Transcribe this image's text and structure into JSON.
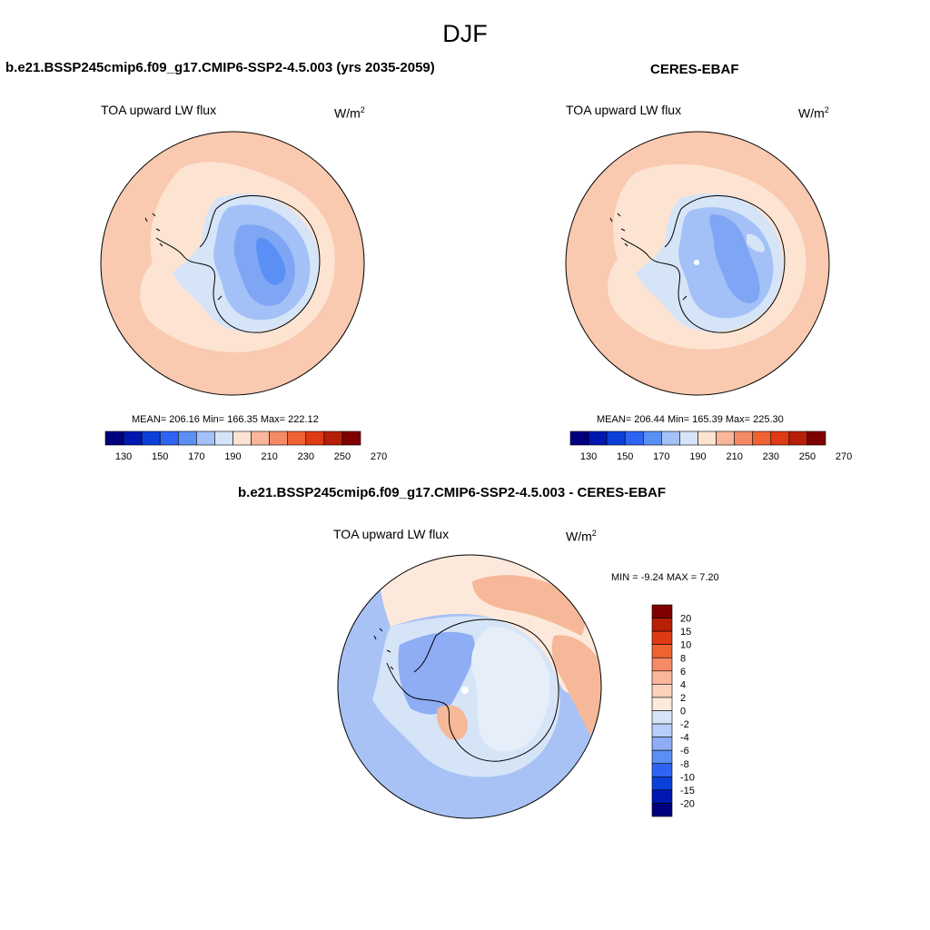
{
  "figure_title": "DJF",
  "panels": [
    {
      "title": "b.e21.BSSP245cmip6.f09_g17.CMIP6-SSP2-4.5.003 (yrs 2035-2059)",
      "variable": "TOA upward LW flux",
      "units_base": "W/m",
      "units_exp": "2",
      "stats": "MEAN= 206.16  Min= 166.35  Max= 222.12"
    },
    {
      "title": "CERES-EBAF",
      "variable": "TOA upward LW flux",
      "units_base": "W/m",
      "units_exp": "2",
      "stats": "MEAN= 206.44  Min= 165.39  Max= 225.30"
    },
    {
      "title": "b.e21.BSSP245cmip6.f09_g17.CMIP6-SSP2-4.5.003 - CERES-EBAF",
      "variable": "TOA upward LW flux",
      "units_base": "W/m",
      "units_exp": "2",
      "stats": "MIN =  -9.24 MAX =   7.20"
    }
  ],
  "colorbar_abs": {
    "tick_labels": [
      "130",
      "150",
      "170",
      "190",
      "210",
      "230",
      "250",
      "270"
    ],
    "colors": [
      "#00007f",
      "#0018b0",
      "#0a3fd8",
      "#2e64f2",
      "#5a8ff6",
      "#a3c0f7",
      "#d6e4f8",
      "#fde4d2",
      "#f9b69b",
      "#f48a66",
      "#ef6232",
      "#de3a14",
      "#b62006",
      "#7f0000"
    ]
  },
  "colorbar_diff": {
    "tick_labels": [
      "20",
      "15",
      "10",
      "8",
      "6",
      "4",
      "2",
      "0",
      "-2",
      "-4",
      "-6",
      "-8",
      "-10",
      "-15",
      "-20"
    ],
    "colors": [
      "#7f0000",
      "#b62006",
      "#de3a14",
      "#ef6232",
      "#f48a66",
      "#f9b69b",
      "#fdd2bc",
      "#fde9dc",
      "#d6e4f8",
      "#b8cdf7",
      "#8eadf5",
      "#5a8ff6",
      "#2e64f2",
      "#0a3fd8",
      "#0018b0",
      "#00007f"
    ]
  },
  "map_colors": {
    "ocean_abs": "#f9c9b0",
    "ocean_abs_light": "#fde4d2",
    "ice_light": "#d6e4f8",
    "ice_mid": "#a3c0f7",
    "ice_dark": "#7fa6f4",
    "ice_core": "#5a8ff6",
    "diff_blue": "#a8c2f5",
    "diff_light": "#d6e4f8",
    "diff_pale": "#fde9dc",
    "diff_orange": "#f6b898"
  }
}
